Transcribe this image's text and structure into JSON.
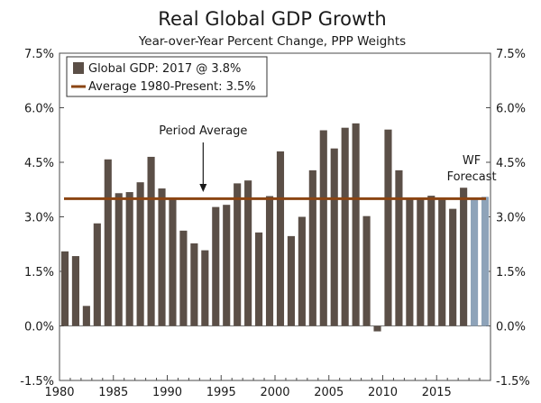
{
  "chart_data": {
    "type": "bar",
    "title": "Real Global GDP Growth",
    "subtitle": "Year-over-Year Percent Change, PPP Weights",
    "xlabel": "",
    "ylabel": "",
    "ylim": [
      -1.5,
      7.5
    ],
    "yticks": [
      "-1.5%",
      "0.0%",
      "1.5%",
      "3.0%",
      "4.5%",
      "6.0%",
      "7.5%"
    ],
    "ytick_values": [
      -1.5,
      0.0,
      1.5,
      3.0,
      4.5,
      6.0,
      7.5
    ],
    "xticks": [
      "1980",
      "1985",
      "1990",
      "1995",
      "2000",
      "2005",
      "2010",
      "2015"
    ],
    "xtick_values": [
      1980,
      1985,
      1990,
      1995,
      2000,
      2005,
      2010,
      2015
    ],
    "series": [
      {
        "name": "Global GDP: 2017 @ 3.8%",
        "color": "#5b4f47",
        "x": [
          1980,
          1981,
          1982,
          1983,
          1984,
          1985,
          1986,
          1987,
          1988,
          1989,
          1990,
          1991,
          1992,
          1993,
          1994,
          1995,
          1996,
          1997,
          1998,
          1999,
          2000,
          2001,
          2002,
          2003,
          2004,
          2005,
          2006,
          2007,
          2008,
          2009,
          2010,
          2011,
          2012,
          2013,
          2014,
          2015,
          2016,
          2017
        ],
        "values": [
          2.05,
          1.92,
          0.55,
          2.82,
          4.58,
          3.65,
          3.68,
          3.95,
          4.65,
          3.78,
          3.5,
          2.62,
          2.27,
          2.08,
          3.27,
          3.33,
          3.92,
          4.0,
          2.57,
          3.57,
          4.8,
          2.47,
          3.0,
          4.28,
          5.38,
          4.88,
          5.45,
          5.57,
          3.02,
          -0.15,
          5.4,
          4.28,
          3.5,
          3.5,
          3.58,
          3.47,
          3.22,
          3.8
        ]
      },
      {
        "name": "WF Forecast",
        "color": "#8ea3b9",
        "x": [
          2018,
          2019
        ],
        "values": [
          3.48,
          3.55
        ]
      }
    ],
    "average_line": {
      "name": "Average 1980-Present: 3.5%",
      "value": 3.5,
      "color": "#8b4513"
    },
    "annotations": [
      {
        "text": "Period Average",
        "x": 1993
      },
      {
        "text": "WF",
        "x": 2017.5
      },
      {
        "text": "Forecast",
        "x": 2017.5
      }
    ],
    "legend": {
      "position": "top-left"
    },
    "grid": false
  }
}
